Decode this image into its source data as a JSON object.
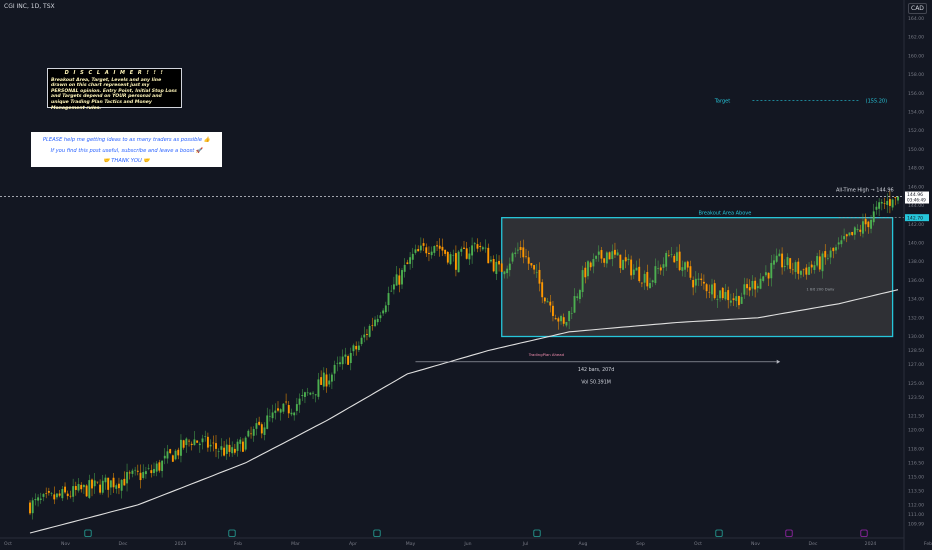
{
  "header": {
    "symbol_line": "CGI INC, 1D, TSX",
    "currency": "CAD"
  },
  "disclaimer": {
    "title": "D I S C L A I M E R  ! ! !",
    "body": "Breakout Area, Target, Levels and any line drawn on this chart represent just my PERSONAL opinion. Entry Point, Initial Stop Loss and Targets depend on YOUR personal and unique Trading Plan Tactics and Money Management rules."
  },
  "help_box": {
    "line1": "PLEASE help me getting ideas to as many traders as possible 👍",
    "line2": "If you find this post useful, subscribe and leave a boost 🚀",
    "line3": "🤝 THANK YOU 🤝"
  },
  "annotations": {
    "target_label": "Target",
    "target_value": "(155.20)",
    "ath_label": "All-Time High → 144.96",
    "breakout_label": "Breakout Area Above",
    "sma_label": "1 Bit 200 Daily",
    "range_label": "TradingPlan Ahead",
    "range_bars": "142 bars, 207d",
    "range_vol": "Vol 50.391M"
  },
  "price_tags": {
    "last_price": "144.96",
    "countdown": "03:46:49",
    "breakout_level": "142.70"
  },
  "colors": {
    "background": "#131722",
    "up": "#4caf50",
    "down": "#ff9800",
    "box_stroke": "#26c6da",
    "box_fill": "#3a3a3c",
    "target": "#26c6da",
    "sma": "#e0e0e0",
    "ath_line": "#d1d4dc"
  },
  "chart_data": {
    "type": "candlestick",
    "y_axis": {
      "range": [
        109,
        165
      ],
      "ticks": [
        "164.00",
        "162.00",
        "160.00",
        "158.00",
        "156.00",
        "154.00",
        "152.00",
        "150.00",
        "148.00",
        "146.00",
        "144.00",
        "142.00",
        "140.00",
        "138.00",
        "136.00",
        "134.00",
        "132.00",
        "130.00",
        "128.50",
        "127.00",
        "125.00",
        "123.50",
        "121.50",
        "120.00",
        "118.00",
        "116.50",
        "115.00",
        "113.50",
        "112.00",
        "111.00",
        "109.99"
      ]
    },
    "x_axis": {
      "labels": [
        "Oct",
        "Nov",
        "Dec",
        "2023",
        "Feb",
        "Mar",
        "Apr",
        "May",
        "Jun",
        "Jul",
        "Aug",
        "Sep",
        "Oct",
        "Nov",
        "Dec",
        "2024",
        "Feb"
      ]
    },
    "close_path": [
      [
        0,
        112
      ],
      [
        25,
        114
      ],
      [
        45,
        115.5
      ],
      [
        60,
        119
      ],
      [
        75,
        117.5
      ],
      [
        88,
        121
      ],
      [
        100,
        123
      ],
      [
        112,
        126
      ],
      [
        122,
        129
      ],
      [
        132,
        134
      ],
      [
        142,
        138.5
      ],
      [
        150,
        140
      ],
      [
        158,
        138
      ],
      [
        166,
        140
      ],
      [
        174,
        137
      ],
      [
        182,
        139.5
      ],
      [
        190,
        135
      ],
      [
        198,
        131
      ],
      [
        206,
        137
      ],
      [
        214,
        139
      ],
      [
        222,
        137.5
      ],
      [
        230,
        136
      ],
      [
        238,
        139
      ],
      [
        246,
        136
      ],
      [
        254,
        135
      ],
      [
        262,
        134
      ],
      [
        270,
        136
      ],
      [
        278,
        138
      ],
      [
        286,
        137
      ],
      [
        294,
        138
      ],
      [
        302,
        140
      ],
      [
        310,
        142
      ],
      [
        316,
        144
      ],
      [
        322,
        144.96
      ]
    ],
    "range_box": {
      "low": 130,
      "high": 142.7
    },
    "levels": {
      "all_time_high": 144.96,
      "breakout": 142.7,
      "target": 155.2
    },
    "sma_200_path": [
      [
        0,
        109
      ],
      [
        40,
        112
      ],
      [
        80,
        116.5
      ],
      [
        110,
        121
      ],
      [
        140,
        126
      ],
      [
        170,
        128.5
      ],
      [
        200,
        130.5
      ],
      [
        240,
        131.5
      ],
      [
        270,
        132
      ],
      [
        300,
        133.5
      ],
      [
        322,
        135
      ]
    ]
  }
}
